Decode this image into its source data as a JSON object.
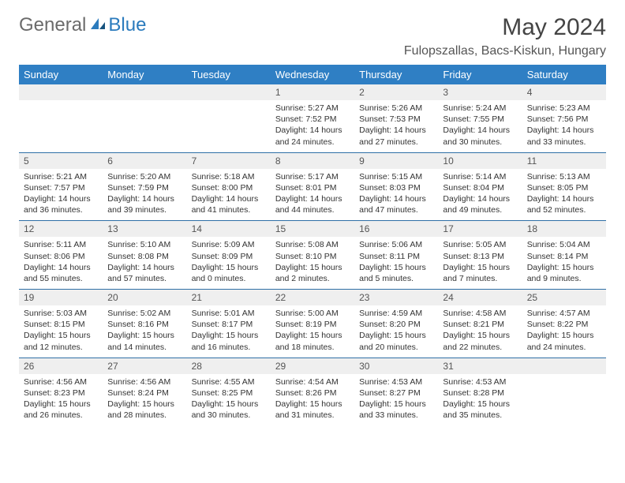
{
  "logo": {
    "text1": "General",
    "text2": "Blue"
  },
  "title": "May 2024",
  "location": "Fulopszallas, Bacs-Kiskun, Hungary",
  "colors": {
    "header_bg": "#2f7fc4",
    "header_text": "#ffffff",
    "daynum_bg": "#efefef",
    "week_sep": "#2f6fa6",
    "logo_gray": "#6b6b6b",
    "logo_blue": "#2b7bbd"
  },
  "day_headers": [
    "Sunday",
    "Monday",
    "Tuesday",
    "Wednesday",
    "Thursday",
    "Friday",
    "Saturday"
  ],
  "weeks": [
    [
      null,
      null,
      null,
      {
        "n": "1",
        "sr": "5:27 AM",
        "ss": "7:52 PM",
        "dl": "14 hours and 24 minutes."
      },
      {
        "n": "2",
        "sr": "5:26 AM",
        "ss": "7:53 PM",
        "dl": "14 hours and 27 minutes."
      },
      {
        "n": "3",
        "sr": "5:24 AM",
        "ss": "7:55 PM",
        "dl": "14 hours and 30 minutes."
      },
      {
        "n": "4",
        "sr": "5:23 AM",
        "ss": "7:56 PM",
        "dl": "14 hours and 33 minutes."
      }
    ],
    [
      {
        "n": "5",
        "sr": "5:21 AM",
        "ss": "7:57 PM",
        "dl": "14 hours and 36 minutes."
      },
      {
        "n": "6",
        "sr": "5:20 AM",
        "ss": "7:59 PM",
        "dl": "14 hours and 39 minutes."
      },
      {
        "n": "7",
        "sr": "5:18 AM",
        "ss": "8:00 PM",
        "dl": "14 hours and 41 minutes."
      },
      {
        "n": "8",
        "sr": "5:17 AM",
        "ss": "8:01 PM",
        "dl": "14 hours and 44 minutes."
      },
      {
        "n": "9",
        "sr": "5:15 AM",
        "ss": "8:03 PM",
        "dl": "14 hours and 47 minutes."
      },
      {
        "n": "10",
        "sr": "5:14 AM",
        "ss": "8:04 PM",
        "dl": "14 hours and 49 minutes."
      },
      {
        "n": "11",
        "sr": "5:13 AM",
        "ss": "8:05 PM",
        "dl": "14 hours and 52 minutes."
      }
    ],
    [
      {
        "n": "12",
        "sr": "5:11 AM",
        "ss": "8:06 PM",
        "dl": "14 hours and 55 minutes."
      },
      {
        "n": "13",
        "sr": "5:10 AM",
        "ss": "8:08 PM",
        "dl": "14 hours and 57 minutes."
      },
      {
        "n": "14",
        "sr": "5:09 AM",
        "ss": "8:09 PM",
        "dl": "15 hours and 0 minutes."
      },
      {
        "n": "15",
        "sr": "5:08 AM",
        "ss": "8:10 PM",
        "dl": "15 hours and 2 minutes."
      },
      {
        "n": "16",
        "sr": "5:06 AM",
        "ss": "8:11 PM",
        "dl": "15 hours and 5 minutes."
      },
      {
        "n": "17",
        "sr": "5:05 AM",
        "ss": "8:13 PM",
        "dl": "15 hours and 7 minutes."
      },
      {
        "n": "18",
        "sr": "5:04 AM",
        "ss": "8:14 PM",
        "dl": "15 hours and 9 minutes."
      }
    ],
    [
      {
        "n": "19",
        "sr": "5:03 AM",
        "ss": "8:15 PM",
        "dl": "15 hours and 12 minutes."
      },
      {
        "n": "20",
        "sr": "5:02 AM",
        "ss": "8:16 PM",
        "dl": "15 hours and 14 minutes."
      },
      {
        "n": "21",
        "sr": "5:01 AM",
        "ss": "8:17 PM",
        "dl": "15 hours and 16 minutes."
      },
      {
        "n": "22",
        "sr": "5:00 AM",
        "ss": "8:19 PM",
        "dl": "15 hours and 18 minutes."
      },
      {
        "n": "23",
        "sr": "4:59 AM",
        "ss": "8:20 PM",
        "dl": "15 hours and 20 minutes."
      },
      {
        "n": "24",
        "sr": "4:58 AM",
        "ss": "8:21 PM",
        "dl": "15 hours and 22 minutes."
      },
      {
        "n": "25",
        "sr": "4:57 AM",
        "ss": "8:22 PM",
        "dl": "15 hours and 24 minutes."
      }
    ],
    [
      {
        "n": "26",
        "sr": "4:56 AM",
        "ss": "8:23 PM",
        "dl": "15 hours and 26 minutes."
      },
      {
        "n": "27",
        "sr": "4:56 AM",
        "ss": "8:24 PM",
        "dl": "15 hours and 28 minutes."
      },
      {
        "n": "28",
        "sr": "4:55 AM",
        "ss": "8:25 PM",
        "dl": "15 hours and 30 minutes."
      },
      {
        "n": "29",
        "sr": "4:54 AM",
        "ss": "8:26 PM",
        "dl": "15 hours and 31 minutes."
      },
      {
        "n": "30",
        "sr": "4:53 AM",
        "ss": "8:27 PM",
        "dl": "15 hours and 33 minutes."
      },
      {
        "n": "31",
        "sr": "4:53 AM",
        "ss": "8:28 PM",
        "dl": "15 hours and 35 minutes."
      },
      null
    ]
  ],
  "labels": {
    "sunrise": "Sunrise: ",
    "sunset": "Sunset: ",
    "daylight": "Daylight: "
  }
}
